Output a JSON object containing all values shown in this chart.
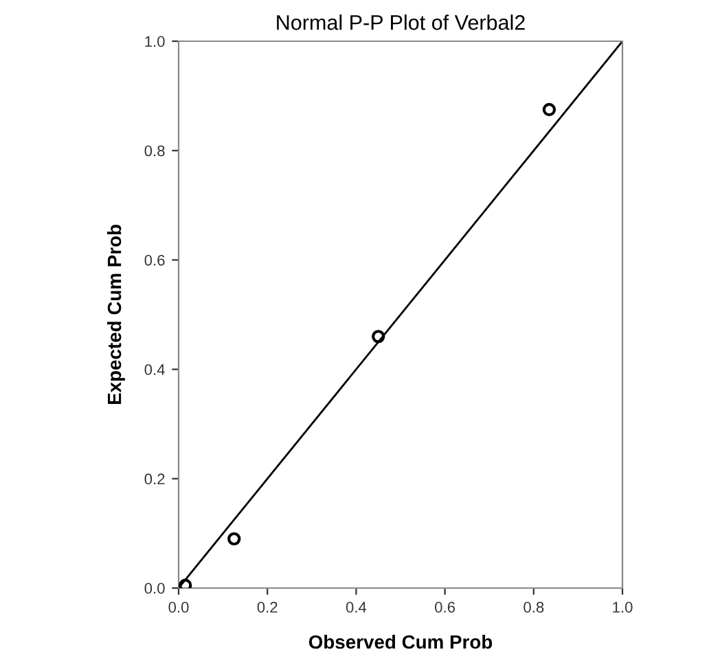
{
  "chart_data": {
    "type": "scatter",
    "title": "Normal P-P Plot of Verbal2",
    "xlabel": "Observed Cum Prob",
    "ylabel": "Expected Cum Prob",
    "series": [
      {
        "color": "#000000",
        "x": [
          0.015,
          0.125,
          0.45,
          0.835
        ],
        "values": [
          0.005,
          0.09,
          0.46,
          0.875
        ],
        "marker": "circle"
      },
      {
        "type": "line",
        "color": "#000000",
        "x": [
          0,
          1
        ],
        "values": [
          0,
          1
        ],
        "marker": "none",
        "line_style": "solid"
      }
    ],
    "xlim": [
      0,
      1
    ],
    "ylim": [
      0,
      1
    ],
    "xticks": [
      {
        "value": 0,
        "label": "0.0"
      },
      {
        "value": 0.2,
        "label": "0.2"
      },
      {
        "value": 0.4,
        "label": "0.4"
      },
      {
        "value": 0.6,
        "label": "0.6"
      },
      {
        "value": 0.8,
        "label": "0.8"
      },
      {
        "value": 1,
        "label": "1.0"
      }
    ],
    "yticks": [
      {
        "value": 0,
        "label": "0.0"
      },
      {
        "value": 0.2,
        "label": "0.2"
      },
      {
        "value": 0.4,
        "label": "0.4"
      },
      {
        "value": 0.6,
        "label": "0.6"
      },
      {
        "value": 0.8,
        "label": "0.8"
      },
      {
        "value": 1,
        "label": "1.0"
      }
    ],
    "grid": false,
    "legend": false
  }
}
